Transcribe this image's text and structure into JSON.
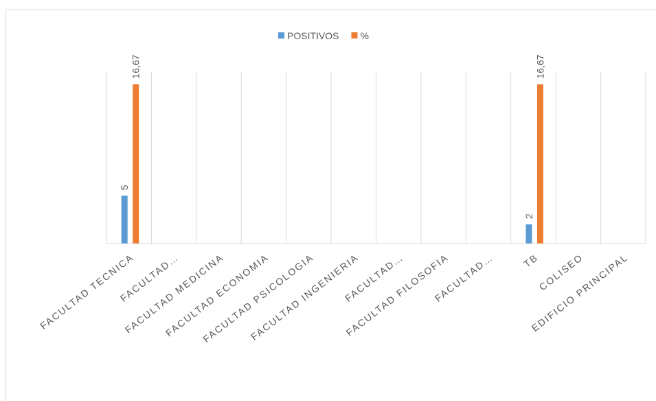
{
  "chart_data": {
    "type": "bar",
    "categories": [
      "FACULTAD TECNICA",
      "FACULTAD…",
      "FACULTAD MEDICINA",
      "FACULTAD ECONOMIA",
      "FACULTAD PSICOLOGIA",
      "FACULTAD INGENIERIA",
      "FACULTAD…",
      "FACULTAD FILOSOFIA",
      "FACULTAD…",
      "TB",
      "COLISEO",
      "EDIFICIO PRINCIPAL"
    ],
    "series": [
      {
        "name": "POSITIVOS",
        "color": "#5b9bd5",
        "values": [
          5,
          null,
          null,
          null,
          null,
          null,
          null,
          null,
          null,
          2,
          null,
          null
        ]
      },
      {
        "name": "%",
        "color": "#ed7d31",
        "values": [
          16.67,
          null,
          null,
          null,
          null,
          null,
          null,
          null,
          null,
          16.67,
          null,
          null
        ],
        "value_labels": [
          "16,67",
          null,
          null,
          null,
          null,
          null,
          null,
          null,
          null,
          "16,67",
          null,
          null
        ]
      }
    ],
    "ylim": [
      0,
      18
    ],
    "grid": true,
    "legend": "top"
  }
}
